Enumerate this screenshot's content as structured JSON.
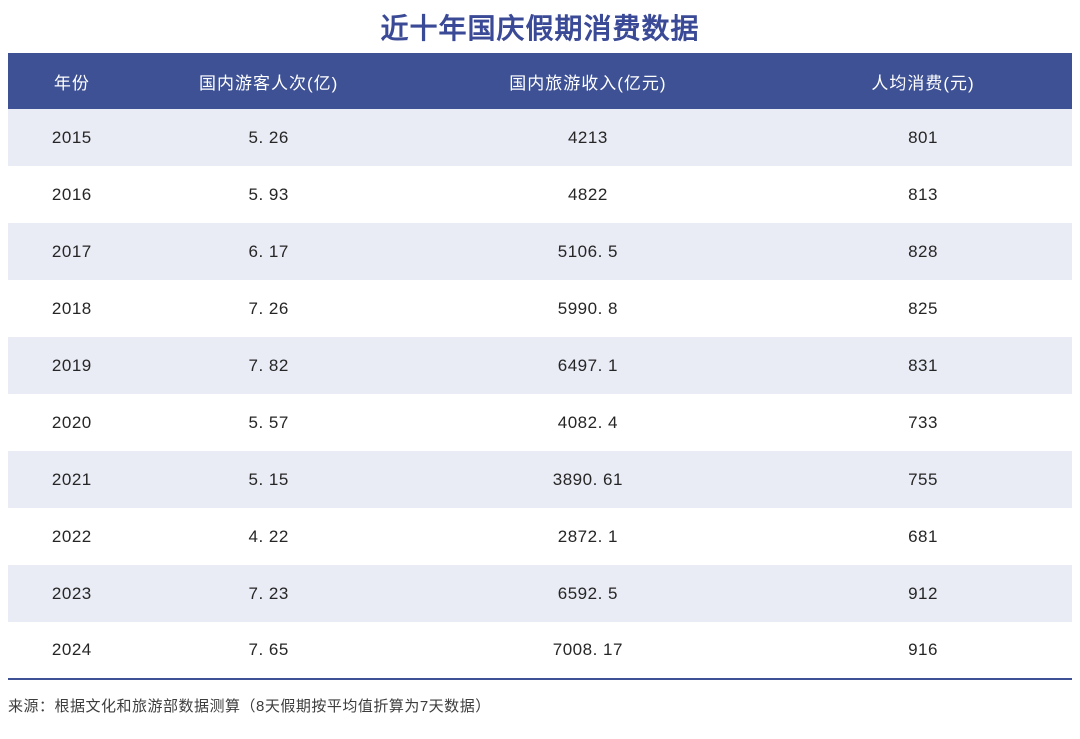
{
  "title": "近十年国庆假期消费数据",
  "source_note": "来源：根据文化和旅游部数据测算（8天假期按平均值折算为7天数据）",
  "colors": {
    "title_text": "#3B4A96",
    "header_bg": "#3D5194",
    "header_text": "#FFFFFF",
    "row_alt_bg": "#E9EBF5",
    "row_bg": "#FFFFFF",
    "cell_text": "#262626",
    "bottom_border": "#3D5194",
    "source_text": "#3D3D3D"
  },
  "chart_data": {
    "type": "table",
    "title": "近十年国庆假期消费数据",
    "columns": [
      "年份",
      "国内游客人次(亿)",
      "国内旅游收入(亿元)",
      "人均消费(元)"
    ],
    "rows": [
      [
        "2015",
        "5. 26",
        "4213",
        "801"
      ],
      [
        "2016",
        "5. 93",
        "4822",
        "813"
      ],
      [
        "2017",
        "6. 17",
        "5106. 5",
        "828"
      ],
      [
        "2018",
        "7. 26",
        "5990. 8",
        "825"
      ],
      [
        "2019",
        "7. 82",
        "6497. 1",
        "831"
      ],
      [
        "2020",
        "5. 57",
        "4082. 4",
        "733"
      ],
      [
        "2021",
        "5. 15",
        "3890. 61",
        "755"
      ],
      [
        "2022",
        "4. 22",
        "2872. 1",
        "681"
      ],
      [
        "2023",
        "7. 23",
        "6592. 5",
        "912"
      ],
      [
        "2024",
        "7. 65",
        "7008. 17",
        "916"
      ]
    ],
    "layout": {
      "striped": true,
      "header_position": "top",
      "grid": "none"
    }
  }
}
